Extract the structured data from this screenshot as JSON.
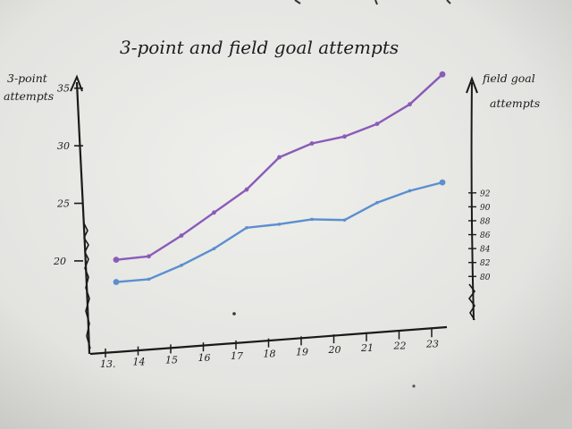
{
  "chart_data": {
    "type": "line",
    "title": "3-point and field goal attempts",
    "y_left": {
      "label_line1": "3-point",
      "label_line2": "attempts",
      "ticks": [
        "20",
        "25",
        "30",
        "35"
      ],
      "range": [
        12,
        38
      ]
    },
    "y_right": {
      "label_line1": "field goal",
      "label_line2": "attempts",
      "ticks": [
        "80",
        "82",
        "84",
        "86",
        "88",
        "90",
        "92"
      ],
      "range": [
        69,
        112
      ]
    },
    "x": [
      "13.",
      "14",
      "15",
      "16",
      "17",
      "18",
      "19",
      "20",
      "21",
      "22",
      "23"
    ],
    "series": [
      {
        "axis": "left",
        "color": "#8a5bb8",
        "values": [
          20.1,
          20.4,
          22.2,
          24.2,
          26.2,
          29.0,
          30.2,
          30.8,
          31.9,
          33.6,
          36.2
        ]
      },
      {
        "axis": "right",
        "color": "#5b8fcf",
        "values": [
          79.2,
          79.6,
          81.6,
          84.0,
          87.0,
          87.5,
          88.2,
          88.1,
          90.6,
          92.3,
          93.5
        ]
      }
    ],
    "grid": false,
    "legend": "none"
  }
}
